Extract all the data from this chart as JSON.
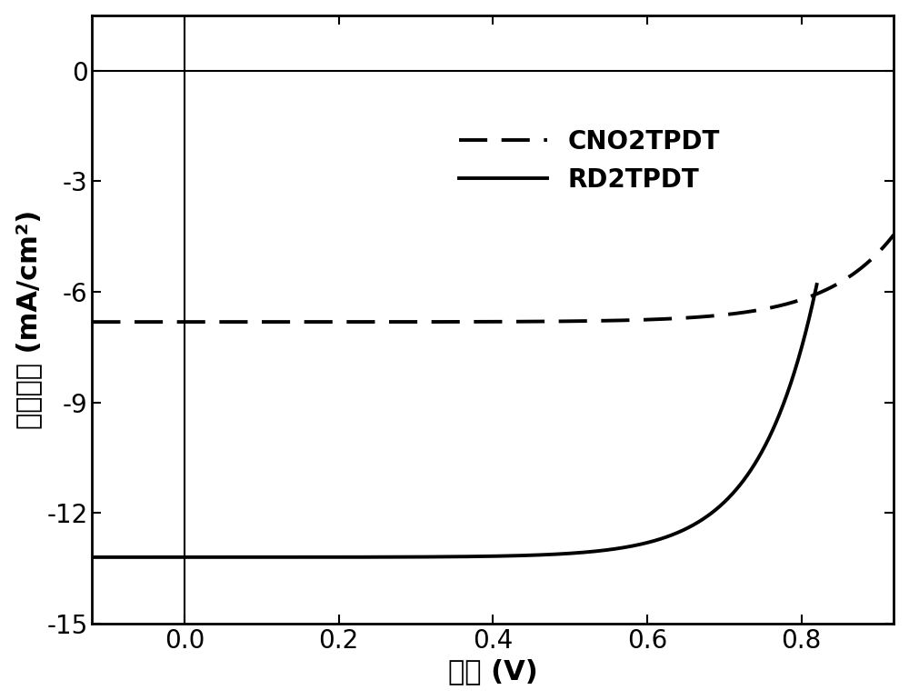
{
  "xlabel": "电压 (V)",
  "ylabel": "电流密度 (mA/cm²)",
  "xlim": [
    -0.12,
    0.92
  ],
  "ylim": [
    -15,
    1.5
  ],
  "yticks": [
    0,
    -3,
    -6,
    -9,
    -12,
    -15
  ],
  "xticks": [
    0.0,
    0.2,
    0.4,
    0.6,
    0.8
  ],
  "legend_labels": [
    "CNO2TPDT",
    "RD2TPDT"
  ],
  "line_color": "#000000",
  "background_color": "#ffffff",
  "fontsize_axis_label": 22,
  "fontsize_tick": 20,
  "fontsize_legend": 20,
  "cno_jsc": -6.82,
  "cno_j0": 6.82e-05,
  "cno_vt": 0.088,
  "rd_jsc": -13.2,
  "rd_j0": 0.000132,
  "rd_vt": 0.075
}
